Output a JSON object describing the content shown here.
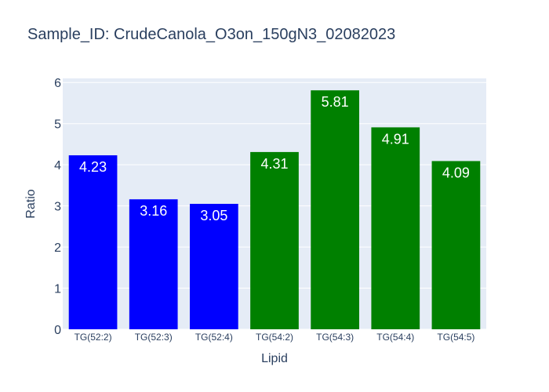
{
  "chart_data": {
    "type": "bar",
    "title": "Sample_ID: CrudeCanola_O3on_150gN3_02082023",
    "xlabel": "Lipid",
    "ylabel": "Ratio",
    "categories": [
      "TG(52:2)",
      "TG(52:3)",
      "TG(52:4)",
      "TG(54:2)",
      "TG(54:3)",
      "TG(54:4)",
      "TG(54:5)"
    ],
    "values": [
      4.23,
      3.16,
      3.05,
      4.31,
      5.81,
      4.91,
      4.09
    ],
    "value_labels": [
      "4.23",
      "3.16",
      "3.05",
      "4.31",
      "5.81",
      "4.91",
      "4.09"
    ],
    "bar_colors": [
      "#0000ff",
      "#0000ff",
      "#0000ff",
      "#008000",
      "#008000",
      "#008000",
      "#008000"
    ],
    "ylim": [
      0,
      6.1
    ],
    "yticks": [
      0,
      1,
      2,
      3,
      4,
      5,
      6
    ],
    "grid": true,
    "plot_background": "#e5ecf6",
    "legend": "none"
  }
}
